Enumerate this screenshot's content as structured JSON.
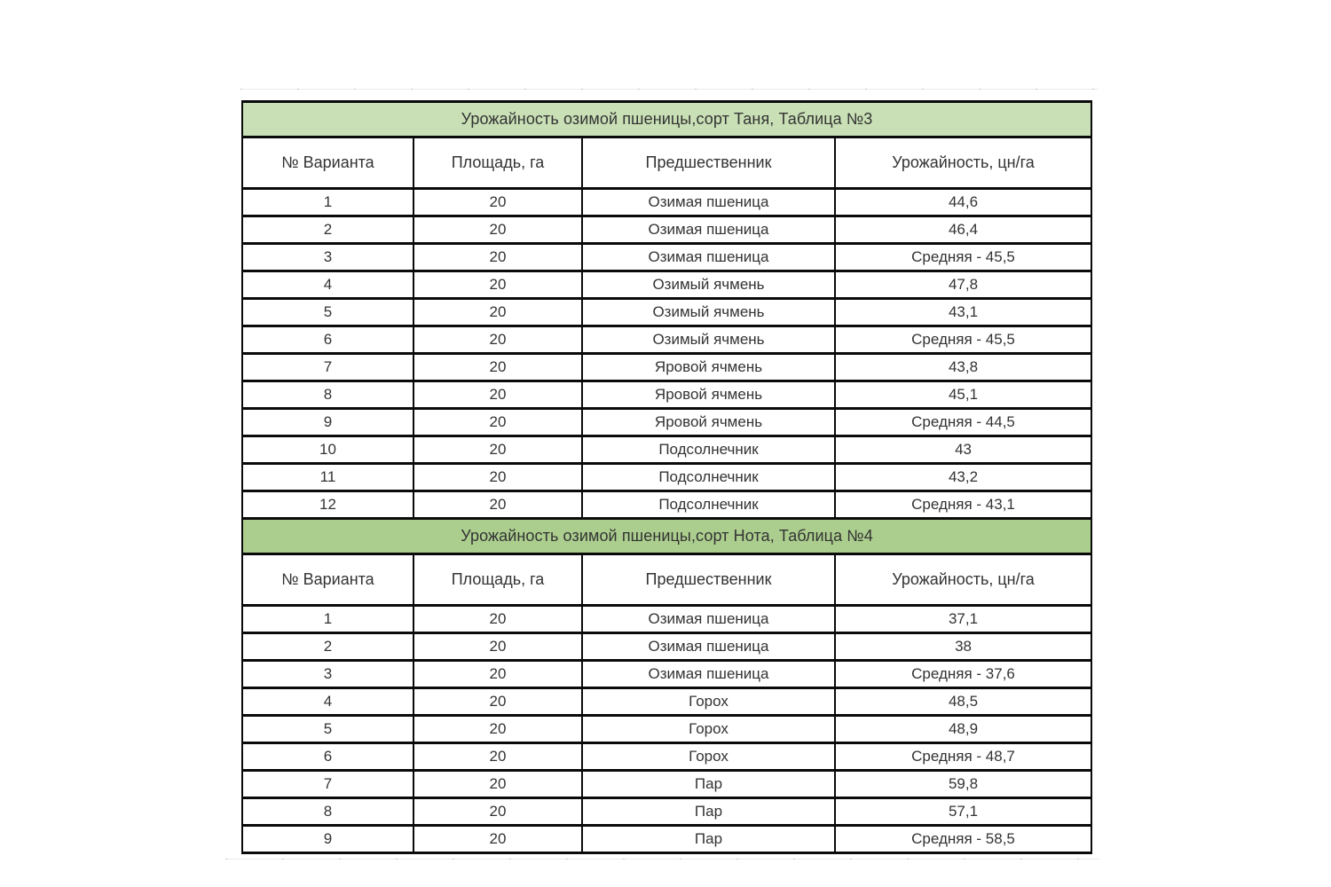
{
  "page": {
    "background_color": "#ffffff",
    "text_color": "#333333",
    "border_color": "#0a0a0a"
  },
  "chart_data": [
    {
      "type": "table",
      "title": "Урожайность озимой пшеницы,сорт Таня, Таблица №3",
      "title_bg": "#c9e0b6",
      "columns": [
        "№ Варианта",
        "Площадь, га",
        "Предшественник",
        "Урожайность, цн/га"
      ],
      "rows": [
        [
          "1",
          "20",
          "Озимая пшеница",
          "44,6"
        ],
        [
          "2",
          "20",
          "Озимая пшеница",
          "46,4"
        ],
        [
          "3",
          "20",
          "Озимая пшеница",
          "Средняя - 45,5"
        ],
        [
          "4",
          "20",
          "Озимый ячмень",
          "47,8"
        ],
        [
          "5",
          "20",
          "Озимый ячмень",
          "43,1"
        ],
        [
          "6",
          "20",
          "Озимый ячмень",
          "Средняя - 45,5"
        ],
        [
          "7",
          "20",
          "Яровой ячмень",
          "43,8"
        ],
        [
          "8",
          "20",
          "Яровой ячмень",
          "45,1"
        ],
        [
          "9",
          "20",
          "Яровой ячмень",
          "Средняя - 44,5"
        ],
        [
          "10",
          "20",
          "Подсолнечник",
          "43"
        ],
        [
          "11",
          "20",
          "Подсолнечник",
          "43,2"
        ],
        [
          "12",
          "20",
          "Подсолнечник",
          "Средняя - 43,1"
        ]
      ]
    },
    {
      "type": "table",
      "title": "Урожайность озимой пшеницы,сорт Нота, Таблица №4",
      "title_bg": "#abce8e",
      "columns": [
        "№ Варианта",
        "Площадь, га",
        "Предшественник",
        "Урожайность, цн/га"
      ],
      "rows": [
        [
          "1",
          "20",
          "Озимая пшеница",
          "37,1"
        ],
        [
          "2",
          "20",
          "Озимая пшеница",
          "38"
        ],
        [
          "3",
          "20",
          "Озимая пшеница",
          "Средняя - 37,6"
        ],
        [
          "4",
          "20",
          "Горох",
          "48,5"
        ],
        [
          "5",
          "20",
          "Горох",
          "48,9"
        ],
        [
          "6",
          "20",
          "Горох",
          "Средняя - 48,7"
        ],
        [
          "7",
          "20",
          "Пар",
          "59,8"
        ],
        [
          "8",
          "20",
          "Пар",
          "57,1"
        ],
        [
          "9",
          "20",
          "Пар",
          "Средняя - 58,5"
        ]
      ]
    }
  ]
}
